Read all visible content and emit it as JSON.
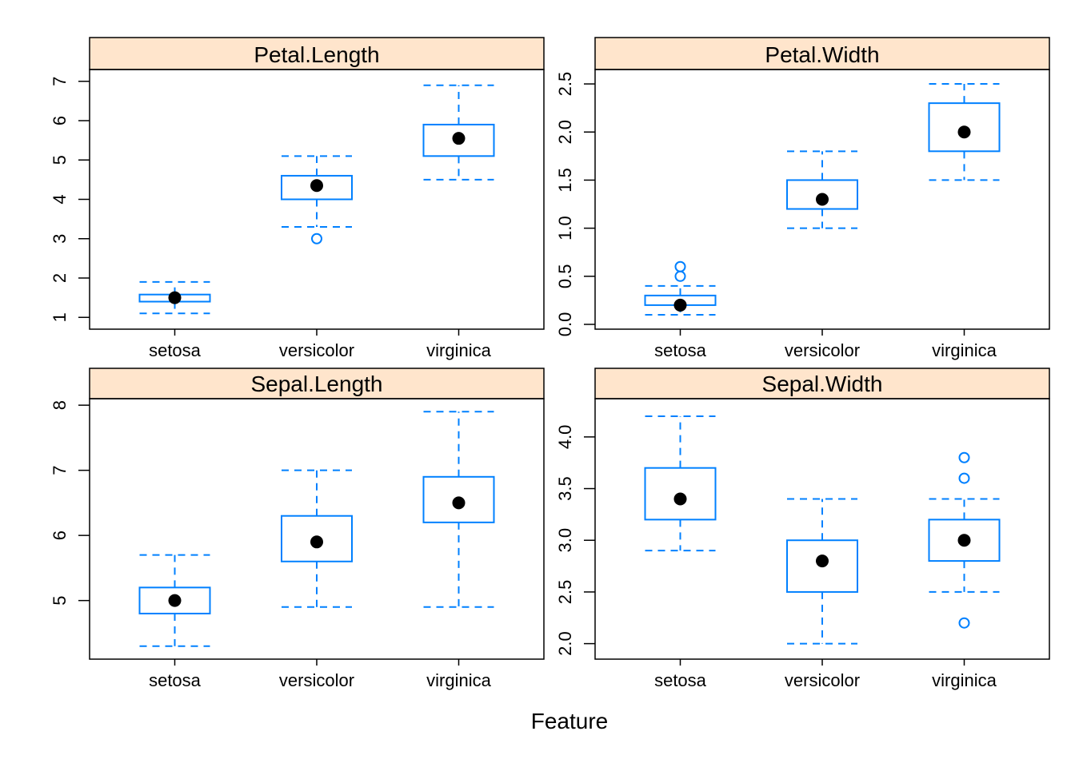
{
  "figure": {
    "xlabel": "Feature",
    "strip_color": "#FFE5CC",
    "box_color": "#0080FF",
    "median_color": "#000000"
  },
  "chart_data": [
    {
      "type": "box",
      "title": "Petal.Length",
      "categories": [
        "setosa",
        "versicolor",
        "virginica"
      ],
      "ylim": [
        0.7,
        7.3
      ],
      "yticks": [
        1,
        2,
        3,
        4,
        5,
        6,
        7
      ],
      "ytick_labels": [
        "1",
        "2",
        "3",
        "4",
        "5",
        "6",
        "7"
      ],
      "boxes": [
        {
          "category": "setosa",
          "whisker_low": 1.1,
          "q1": 1.4,
          "median": 1.5,
          "q3": 1.58,
          "whisker_high": 1.9,
          "outliers": []
        },
        {
          "category": "versicolor",
          "whisker_low": 3.3,
          "q1": 4.0,
          "median": 4.35,
          "q3": 4.6,
          "whisker_high": 5.1,
          "outliers": [
            3.0
          ]
        },
        {
          "category": "virginica",
          "whisker_low": 4.5,
          "q1": 5.1,
          "median": 5.55,
          "q3": 5.9,
          "whisker_high": 6.9,
          "outliers": []
        }
      ]
    },
    {
      "type": "box",
      "title": "Petal.Width",
      "categories": [
        "setosa",
        "versicolor",
        "virginica"
      ],
      "ylim": [
        -0.05,
        2.65
      ],
      "yticks": [
        0.0,
        0.5,
        1.0,
        1.5,
        2.0,
        2.5
      ],
      "ytick_labels": [
        "0.0",
        "0.5",
        "1.0",
        "1.5",
        "2.0",
        "2.5"
      ],
      "boxes": [
        {
          "category": "setosa",
          "whisker_low": 0.1,
          "q1": 0.2,
          "median": 0.2,
          "q3": 0.3,
          "whisker_high": 0.4,
          "outliers": [
            0.5,
            0.6
          ]
        },
        {
          "category": "versicolor",
          "whisker_low": 1.0,
          "q1": 1.2,
          "median": 1.3,
          "q3": 1.5,
          "whisker_high": 1.8,
          "outliers": []
        },
        {
          "category": "virginica",
          "whisker_low": 1.5,
          "q1": 1.8,
          "median": 2.0,
          "q3": 2.3,
          "whisker_high": 2.5,
          "outliers": []
        }
      ]
    },
    {
      "type": "box",
      "title": "Sepal.Length",
      "categories": [
        "setosa",
        "versicolor",
        "virginica"
      ],
      "ylim": [
        4.1,
        8.1
      ],
      "yticks": [
        5,
        6,
        7,
        8
      ],
      "ytick_labels": [
        "5",
        "6",
        "7",
        "8"
      ],
      "boxes": [
        {
          "category": "setosa",
          "whisker_low": 4.3,
          "q1": 4.8,
          "median": 5.0,
          "q3": 5.2,
          "whisker_high": 5.7,
          "outliers": []
        },
        {
          "category": "versicolor",
          "whisker_low": 4.9,
          "q1": 5.6,
          "median": 5.9,
          "q3": 6.3,
          "whisker_high": 7.0,
          "outliers": []
        },
        {
          "category": "virginica",
          "whisker_low": 4.9,
          "q1": 6.2,
          "median": 6.5,
          "q3": 6.9,
          "whisker_high": 7.9,
          "outliers": []
        }
      ]
    },
    {
      "type": "box",
      "title": "Sepal.Width",
      "categories": [
        "setosa",
        "versicolor",
        "virginica"
      ],
      "ylim": [
        1.85,
        4.37
      ],
      "yticks": [
        2.0,
        2.5,
        3.0,
        3.5,
        4.0
      ],
      "ytick_labels": [
        "2.0",
        "2.5",
        "3.0",
        "3.5",
        "4.0"
      ],
      "boxes": [
        {
          "category": "setosa",
          "whisker_low": 2.9,
          "q1": 3.2,
          "median": 3.4,
          "q3": 3.7,
          "whisker_high": 4.2,
          "outliers": []
        },
        {
          "category": "versicolor",
          "whisker_low": 2.0,
          "q1": 2.5,
          "median": 2.8,
          "q3": 3.0,
          "whisker_high": 3.4,
          "outliers": []
        },
        {
          "category": "virginica",
          "whisker_low": 2.5,
          "q1": 2.8,
          "median": 3.0,
          "q3": 3.2,
          "whisker_high": 3.4,
          "outliers": [
            3.8,
            3.6,
            2.2
          ]
        }
      ]
    }
  ]
}
